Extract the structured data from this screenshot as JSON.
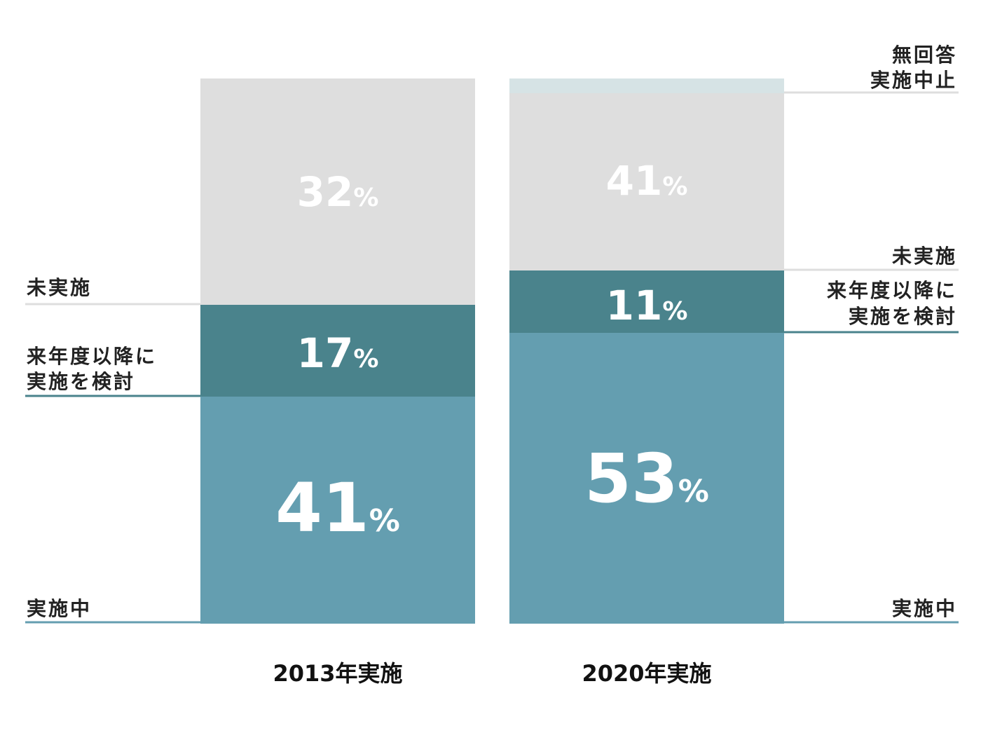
{
  "colors": {
    "jisshichu": "#649EB0",
    "kentou": "#4A838C",
    "mijisshi": "#DEDEDE",
    "muKaitou": "#D6E3E5",
    "line_grey": "#DEDEDE",
    "line_teal": "#4A838C",
    "line_blue": "#649EB0"
  },
  "chart_data": {
    "type": "bar",
    "stacked": true,
    "categories": [
      "2013年実施",
      "2020年実施"
    ],
    "series": [
      {
        "name": "実施中",
        "values": [
          41,
          53
        ],
        "labels": [
          "41",
          "53"
        ],
        "color": "#649EB0"
      },
      {
        "name": "来年度以降に実施を検討",
        "values": [
          17,
          11
        ],
        "labels": [
          "17",
          "11"
        ],
        "color": "#4A838C"
      },
      {
        "name": "未実施",
        "values": [
          32,
          41
        ],
        "labels": [
          "32",
          "41"
        ],
        "color": "#DEDEDE"
      },
      {
        "name": "無回答 実施中止",
        "values": [
          0,
          3
        ],
        "labels": [
          "",
          ""
        ],
        "color": "#D6E3E5"
      }
    ],
    "unit": "%",
    "legend_left": {
      "jisshichu": "実施中",
      "kentou_line1": "来年度以降に",
      "kentou_line2": "実施を検討",
      "mijisshi": "未実施"
    },
    "legend_right": {
      "mukaitou_line1": "無回答",
      "mukaitou_line2": "実施中止",
      "mijisshi": "未実施",
      "kentou_line1": "来年度以降に",
      "kentou_line2": "実施を検討",
      "jisshichu": "実施中"
    }
  }
}
